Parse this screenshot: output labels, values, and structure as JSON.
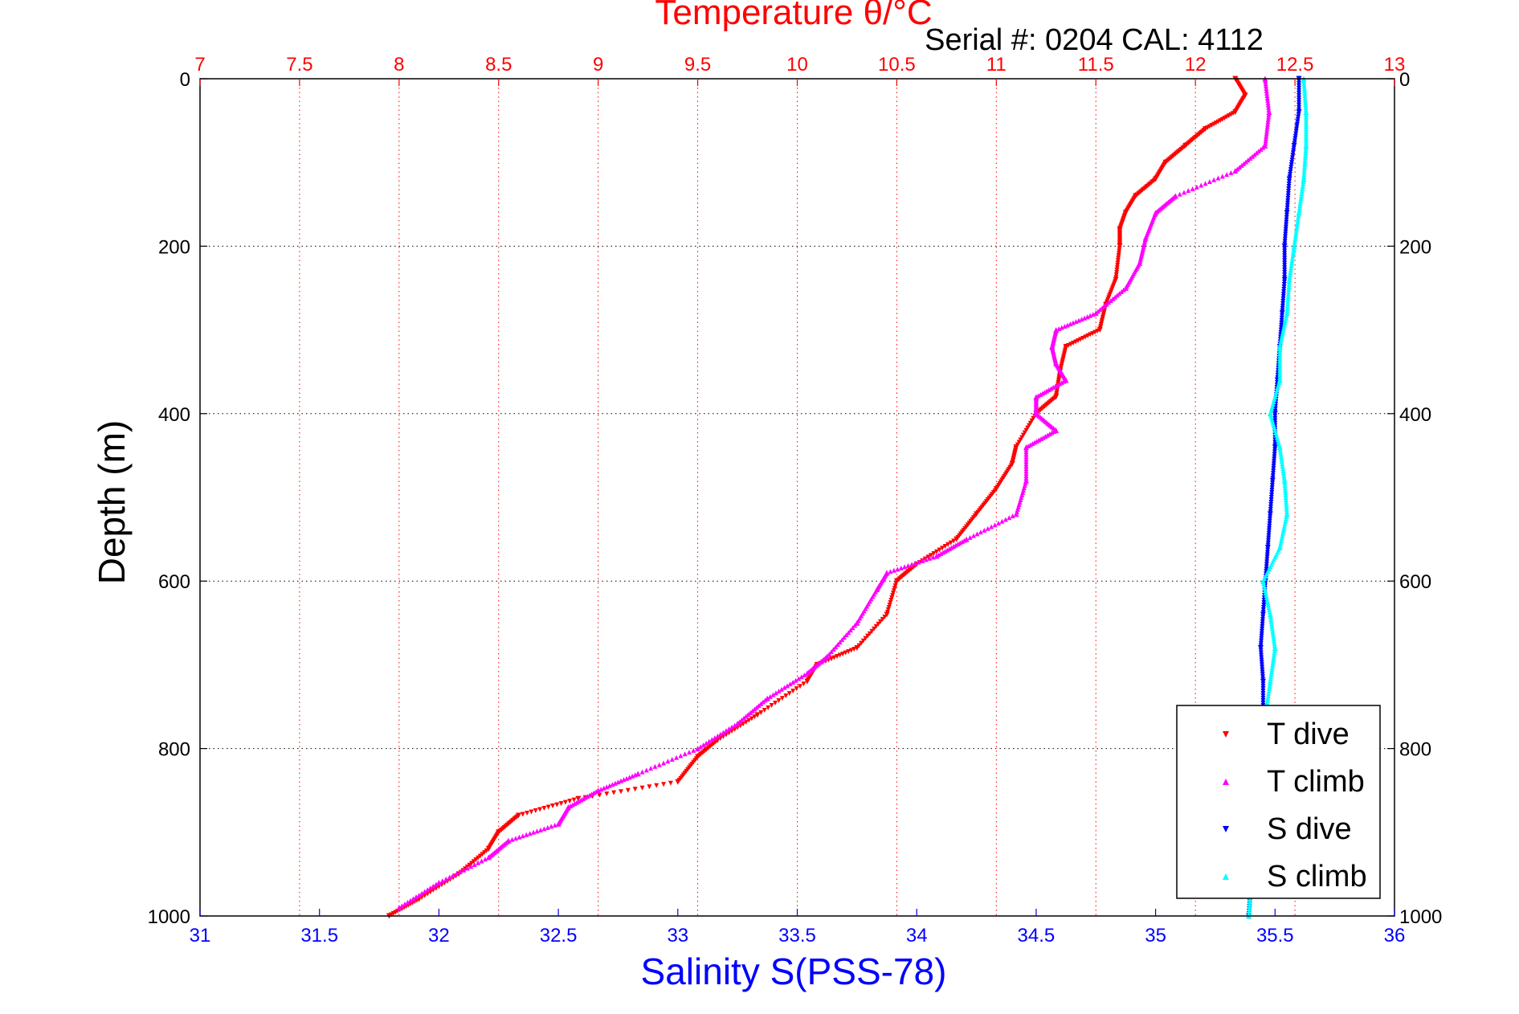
{
  "chart_data": {
    "type": "scatter",
    "top_axis": {
      "label": "Temperature θ/°C",
      "range": [
        7,
        13
      ],
      "ticks": [
        "7",
        "7.5",
        "8",
        "8.5",
        "9",
        "9.5",
        "10",
        "10.5",
        "11",
        "11.5",
        "12",
        "12.5",
        "13"
      ],
      "color": "#ff0000"
    },
    "bottom_axis": {
      "label": "Salinity S(PSS-78)",
      "range": [
        31,
        36
      ],
      "ticks": [
        "31",
        "31.5",
        "32",
        "32.5",
        "33",
        "33.5",
        "34",
        "34.5",
        "35",
        "35.5",
        "36"
      ],
      "color": "#0000ff"
    },
    "y_axis": {
      "label": "Depth (m)",
      "range": [
        0,
        1000
      ],
      "reversed": true,
      "ticks": [
        "0",
        "200",
        "400",
        "600",
        "800",
        "1000"
      ]
    },
    "annotation": "Serial #: 0204  CAL: 4112",
    "grid": true,
    "legend_position": "bottom-right",
    "series": [
      {
        "name": "T dive",
        "axis": "temperature",
        "color": "#ff0000",
        "marker": "triangle-down",
        "points": [
          [
            12.2,
            0
          ],
          [
            12.25,
            20
          ],
          [
            12.2,
            40
          ],
          [
            12.05,
            60
          ],
          [
            11.95,
            80
          ],
          [
            11.85,
            100
          ],
          [
            11.8,
            120
          ],
          [
            11.7,
            140
          ],
          [
            11.65,
            160
          ],
          [
            11.62,
            180
          ],
          [
            11.62,
            200
          ],
          [
            11.6,
            240
          ],
          [
            11.55,
            270
          ],
          [
            11.52,
            300
          ],
          [
            11.35,
            320
          ],
          [
            11.32,
            350
          ],
          [
            11.3,
            380
          ],
          [
            11.2,
            400
          ],
          [
            11.1,
            440
          ],
          [
            11.08,
            460
          ],
          [
            11.0,
            490
          ],
          [
            10.9,
            520
          ],
          [
            10.8,
            550
          ],
          [
            10.6,
            580
          ],
          [
            10.5,
            600
          ],
          [
            10.45,
            640
          ],
          [
            10.3,
            680
          ],
          [
            10.1,
            700
          ],
          [
            10.05,
            720
          ],
          [
            9.8,
            760
          ],
          [
            9.6,
            790
          ],
          [
            9.5,
            810
          ],
          [
            9.4,
            840
          ],
          [
            8.9,
            860
          ],
          [
            8.6,
            880
          ],
          [
            8.5,
            900
          ],
          [
            8.45,
            920
          ],
          [
            8.3,
            950
          ],
          [
            8.1,
            980
          ],
          [
            7.95,
            1000
          ]
        ]
      },
      {
        "name": "T climb",
        "axis": "temperature",
        "color": "#ff00ff",
        "marker": "triangle-up",
        "points": [
          [
            12.35,
            0
          ],
          [
            12.37,
            40
          ],
          [
            12.35,
            80
          ],
          [
            12.2,
            110
          ],
          [
            11.9,
            140
          ],
          [
            11.8,
            160
          ],
          [
            11.75,
            190
          ],
          [
            11.72,
            220
          ],
          [
            11.65,
            250
          ],
          [
            11.5,
            280
          ],
          [
            11.3,
            300
          ],
          [
            11.28,
            320
          ],
          [
            11.3,
            340
          ],
          [
            11.35,
            360
          ],
          [
            11.2,
            380
          ],
          [
            11.2,
            400
          ],
          [
            11.3,
            420
          ],
          [
            11.15,
            440
          ],
          [
            11.15,
            480
          ],
          [
            11.1,
            520
          ],
          [
            10.85,
            550
          ],
          [
            10.7,
            570
          ],
          [
            10.45,
            590
          ],
          [
            10.4,
            610
          ],
          [
            10.3,
            650
          ],
          [
            10.15,
            690
          ],
          [
            10.05,
            710
          ],
          [
            9.85,
            740
          ],
          [
            9.7,
            770
          ],
          [
            9.5,
            800
          ],
          [
            9.2,
            830
          ],
          [
            9.0,
            850
          ],
          [
            8.85,
            870
          ],
          [
            8.8,
            890
          ],
          [
            8.55,
            910
          ],
          [
            8.45,
            930
          ],
          [
            8.2,
            960
          ],
          [
            8.0,
            990
          ]
        ]
      },
      {
        "name": "S dive",
        "axis": "salinity",
        "color": "#0000ff",
        "marker": "triangle-down",
        "points": [
          [
            35.6,
            0
          ],
          [
            35.6,
            40
          ],
          [
            35.58,
            80
          ],
          [
            35.56,
            120
          ],
          [
            35.55,
            160
          ],
          [
            35.54,
            200
          ],
          [
            35.54,
            240
          ],
          [
            35.53,
            280
          ],
          [
            35.52,
            320
          ],
          [
            35.51,
            360
          ],
          [
            35.5,
            400
          ],
          [
            35.5,
            440
          ],
          [
            35.49,
            480
          ],
          [
            35.48,
            520
          ],
          [
            35.47,
            560
          ],
          [
            35.46,
            600
          ],
          [
            35.45,
            640
          ],
          [
            35.44,
            680
          ],
          [
            35.45,
            720
          ],
          [
            35.45,
            760
          ],
          [
            35.43,
            800
          ],
          [
            35.42,
            840
          ],
          [
            35.41,
            880
          ],
          [
            35.4,
            920
          ],
          [
            35.4,
            960
          ],
          [
            35.39,
            1000
          ]
        ]
      },
      {
        "name": "S climb",
        "axis": "salinity",
        "color": "#00ffff",
        "marker": "triangle-up",
        "points": [
          [
            35.62,
            0
          ],
          [
            35.63,
            40
          ],
          [
            35.63,
            80
          ],
          [
            35.62,
            120
          ],
          [
            35.6,
            160
          ],
          [
            35.58,
            200
          ],
          [
            35.56,
            240
          ],
          [
            35.55,
            280
          ],
          [
            35.52,
            320
          ],
          [
            35.52,
            360
          ],
          [
            35.48,
            400
          ],
          [
            35.52,
            440
          ],
          [
            35.54,
            480
          ],
          [
            35.55,
            520
          ],
          [
            35.52,
            560
          ],
          [
            35.45,
            600
          ],
          [
            35.48,
            640
          ],
          [
            35.5,
            680
          ],
          [
            35.48,
            720
          ],
          [
            35.46,
            760
          ],
          [
            35.45,
            800
          ],
          [
            35.43,
            840
          ],
          [
            35.42,
            880
          ],
          [
            35.41,
            920
          ],
          [
            35.4,
            960
          ],
          [
            35.39,
            1000
          ]
        ]
      }
    ]
  }
}
